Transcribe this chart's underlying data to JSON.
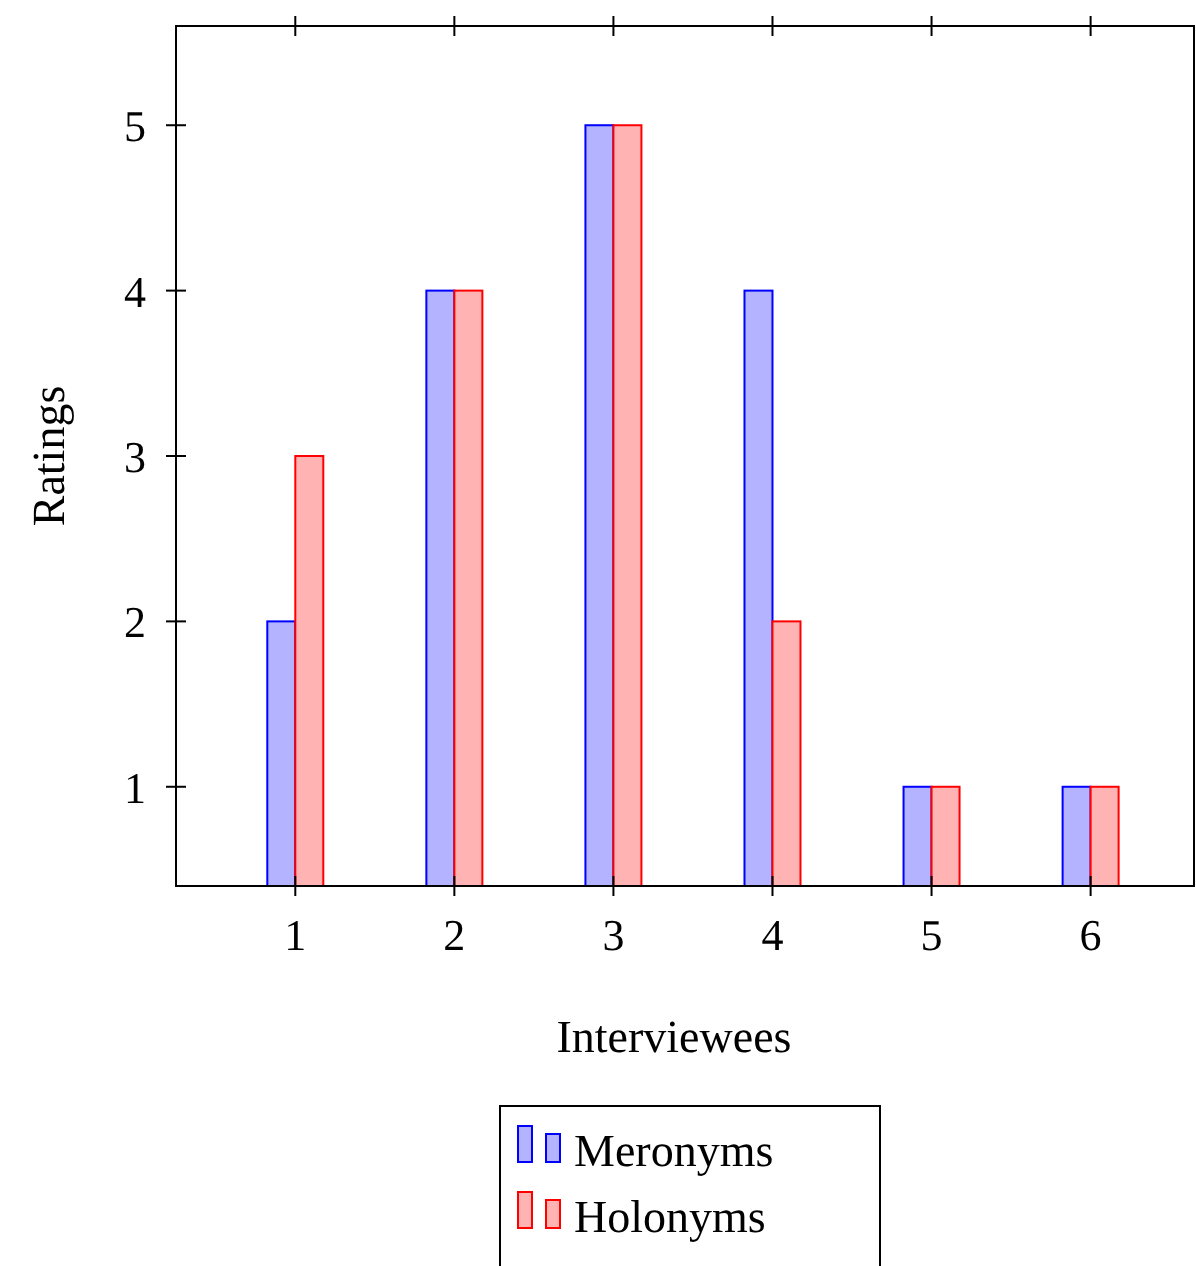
{
  "chart_data": {
    "type": "bar",
    "xlabel": "Interviewees",
    "ylabel": "Ratings",
    "x": [
      1,
      2,
      3,
      4,
      5,
      6
    ],
    "series": [
      {
        "name": "Meronyms",
        "color": "#0000ff",
        "values": [
          2,
          4,
          5,
          4,
          1,
          1
        ]
      },
      {
        "name": "Holonyms",
        "color": "#ff0000",
        "values": [
          3,
          4,
          5,
          2,
          1,
          1
        ]
      }
    ],
    "xlim": [
      0.25,
      6.65
    ],
    "xticks": [
      1,
      2,
      3,
      4,
      5,
      6
    ],
    "ylim": [
      0.4,
      5.6
    ],
    "yticks": [
      1,
      2,
      3,
      4,
      5
    ],
    "grid": false,
    "legend": "bottom"
  }
}
